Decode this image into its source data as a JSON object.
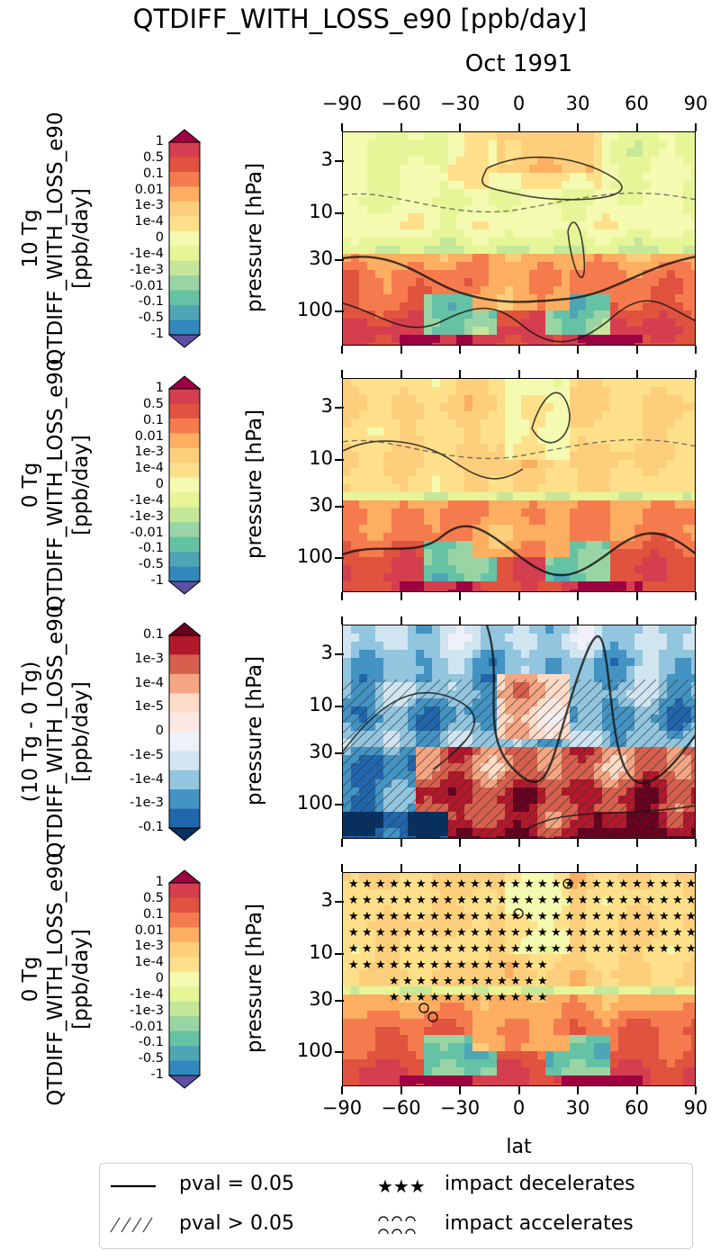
{
  "title": "QTDIFF_WITH_LOSS_e90 [ppb/day]",
  "subtitle": "Oct 1991",
  "xlabel": "lat",
  "chart_data": [
    {
      "type": "heatmap",
      "title": "",
      "row_label": [
        "10 Tg",
        "QTDIFF_WITH_LOSS_e90",
        "[ppb/day]"
      ],
      "ylabel": "pressure [hPa]",
      "x_ticks": [
        "−90",
        "−60",
        "−30",
        "0",
        "30",
        "60",
        "90"
      ],
      "y_ticks": [
        "3",
        "10",
        "30",
        "100"
      ],
      "xlim": [
        -90,
        90
      ],
      "ylim": [
        1.5,
        220
      ],
      "y_scale": "log",
      "colorbar_ticks": [
        "1",
        "0.5",
        "0.1",
        "0.01",
        "1e-3",
        "1e-4",
        "0",
        "-1e-4",
        "-1e-3",
        "-0.01",
        "-0.1",
        "-0.5",
        "-1"
      ]
    },
    {
      "type": "heatmap",
      "title": "",
      "row_label": [
        "0 Tg",
        "QTDIFF_WITH_LOSS_e90",
        "[ppb/day]"
      ],
      "ylabel": "pressure [hPa]",
      "y_ticks": [
        "3",
        "10",
        "30",
        "100"
      ],
      "xlim": [
        -90,
        90
      ],
      "ylim": [
        1.5,
        220
      ],
      "y_scale": "log",
      "colorbar_ticks": [
        "1",
        "0.5",
        "0.1",
        "0.01",
        "1e-3",
        "1e-4",
        "0",
        "-1e-4",
        "-1e-3",
        "-0.01",
        "-0.1",
        "-0.5",
        "-1"
      ]
    },
    {
      "type": "heatmap",
      "title": "",
      "row_label": [
        "(10 Tg - 0 Tg)",
        "QTDIFF_WITH_LOSS_e90",
        "[ppb/day]"
      ],
      "ylabel": "pressure [hPa]",
      "y_ticks": [
        "3",
        "10",
        "30",
        "100"
      ],
      "xlim": [
        -90,
        90
      ],
      "ylim": [
        1.5,
        220
      ],
      "y_scale": "log",
      "colorbar_ticks": [
        "0.1",
        "1e-3",
        "1e-4",
        "1e-5",
        "0",
        "-1e-5",
        "-1e-4",
        "-1e-3",
        "-0.1"
      ]
    },
    {
      "type": "heatmap",
      "title": "",
      "row_label": [
        "0 Tg",
        "QTDIFF_WITH_LOSS_e90",
        "[ppb/day]"
      ],
      "ylabel": "pressure [hPa]",
      "x_ticks": [
        "−90",
        "−60",
        "−30",
        "0",
        "30",
        "60",
        "90"
      ],
      "y_ticks": [
        "3",
        "10",
        "30",
        "100"
      ],
      "xlim": [
        -90,
        90
      ],
      "ylim": [
        1.5,
        220
      ],
      "y_scale": "log",
      "colorbar_ticks": [
        "1",
        "0.5",
        "0.1",
        "0.01",
        "1e-3",
        "1e-4",
        "0",
        "-1e-4",
        "-1e-3",
        "-0.01",
        "-0.1",
        "-0.5",
        "-1"
      ]
    }
  ],
  "legend": {
    "items": [
      {
        "symbol": "solid-line",
        "label": "pval = 0.05"
      },
      {
        "symbol": "hatch",
        "label": "pval > 0.05"
      },
      {
        "symbol": "stars",
        "label": "impact decelerates"
      },
      {
        "symbol": "circles",
        "label": "impact accelerates"
      }
    ]
  },
  "colors": {
    "spectral": [
      "#5e4fa2",
      "#3288bd",
      "#4ea6b5",
      "#66c2a5",
      "#99d5a4",
      "#c4e79a",
      "#e6f598",
      "#f4fab0",
      "#fee08b",
      "#fdcf7c",
      "#fdae61",
      "#f57b4e",
      "#e0533e",
      "#d53e4f",
      "#9e0142"
    ],
    "diverging": [
      "#053061",
      "#2166ac",
      "#4393c3",
      "#92c5de",
      "#d1e5f0",
      "#eef1f7",
      "#fbe8e2",
      "#fddbc7",
      "#f4a582",
      "#d6604d",
      "#b2182b",
      "#67001f"
    ]
  }
}
